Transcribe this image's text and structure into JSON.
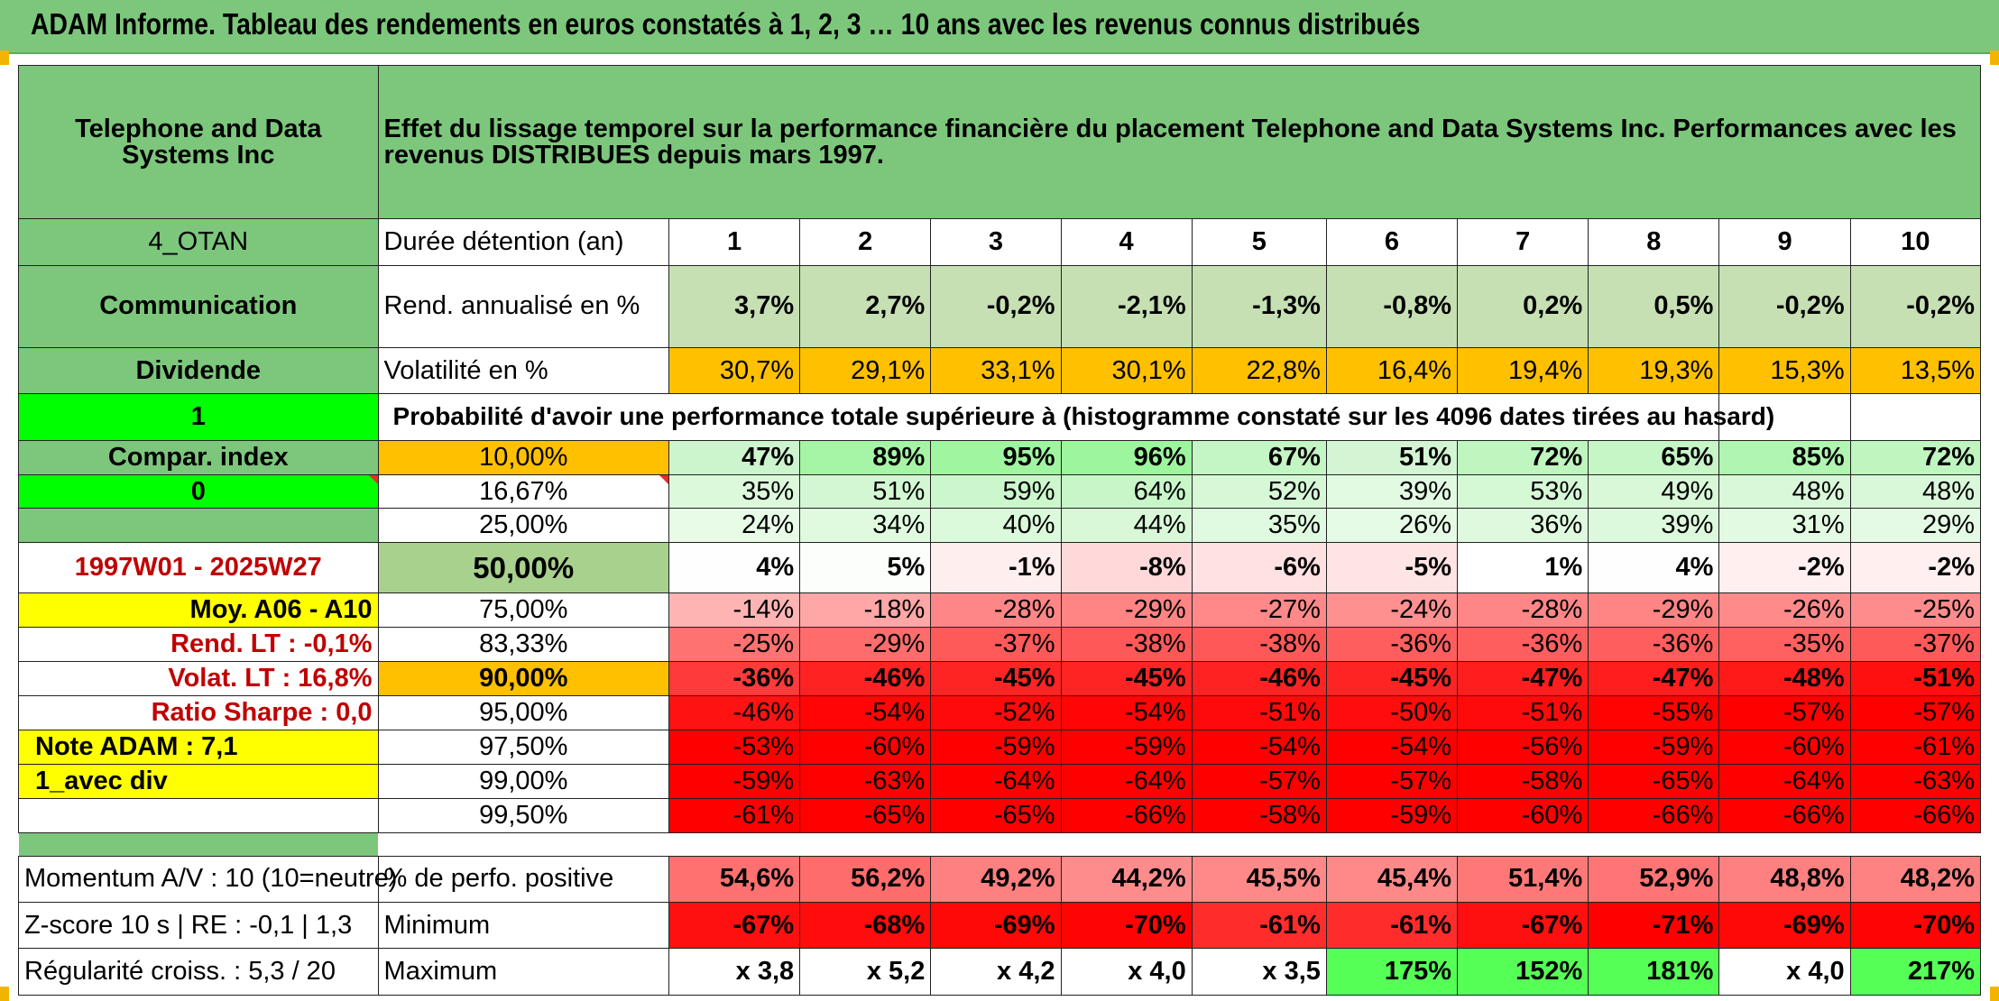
{
  "banner": "ADAM Informe. Tableau des rendements en euros constatés à 1, 2, 3 … 10 ans avec les revenus connus distribués",
  "header": {
    "company": "Telephone and Data Systems Inc",
    "description": "Effet du lissage temporel sur la performance financière du placement Telephone and Data Systems Inc. Performances avec les revenus DISTRIBUES depuis mars 1997."
  },
  "left": {
    "code": "4_OTAN",
    "sector": "Communication",
    "dividend_label": "Dividende",
    "flag1": "1",
    "compar_index": "Compar. index",
    "flag0": "0",
    "period": "1997W01 - 2025W27",
    "moy": "Moy. A06 - A10",
    "rend_lt": "Rend. LT :   -0,1%",
    "volat_lt": "Volat. LT :   16,8%",
    "sharpe": "Ratio Sharpe :    0,0",
    "note": "Note ADAM : 7,1",
    "avec_div": "1_avec div"
  },
  "rows": {
    "duree_label": "Durée détention (an)",
    "years": [
      "1",
      "2",
      "3",
      "4",
      "5",
      "6",
      "7",
      "8",
      "9",
      "10"
    ],
    "rend_label": "Rend. annualisé en %",
    "rend": [
      "3,7%",
      "2,7%",
      "-0,2%",
      "-2,1%",
      "-1,3%",
      "-0,8%",
      "0,2%",
      "0,5%",
      "-0,2%",
      "-0,2%"
    ],
    "vol_label": "Volatilité en %",
    "vol": [
      "30,7%",
      "29,1%",
      "33,1%",
      "30,1%",
      "22,8%",
      "16,4%",
      "19,4%",
      "19,3%",
      "15,3%",
      "13,5%"
    ],
    "proba_label": "Probabilité d'avoir une performance totale supérieure à (histogramme constaté sur les 4096 dates tirées au hasard)"
  },
  "quantiles": [
    {
      "label": "10,00%",
      "values": [
        "47%",
        "89%",
        "95%",
        "96%",
        "67%",
        "51%",
        "72%",
        "65%",
        "85%",
        "72%"
      ]
    },
    {
      "label": "16,67%",
      "values": [
        "35%",
        "51%",
        "59%",
        "64%",
        "52%",
        "39%",
        "53%",
        "49%",
        "48%",
        "48%"
      ]
    },
    {
      "label": "25,00%",
      "values": [
        "24%",
        "34%",
        "40%",
        "44%",
        "35%",
        "26%",
        "36%",
        "39%",
        "31%",
        "29%"
      ]
    },
    {
      "label": "50,00%",
      "values": [
        "4%",
        "5%",
        "-1%",
        "-8%",
        "-6%",
        "-5%",
        "1%",
        "4%",
        "-2%",
        "-2%"
      ]
    },
    {
      "label": "75,00%",
      "values": [
        "-14%",
        "-18%",
        "-28%",
        "-29%",
        "-27%",
        "-24%",
        "-28%",
        "-29%",
        "-26%",
        "-25%"
      ]
    },
    {
      "label": "83,33%",
      "values": [
        "-25%",
        "-29%",
        "-37%",
        "-38%",
        "-38%",
        "-36%",
        "-36%",
        "-36%",
        "-35%",
        "-37%"
      ]
    },
    {
      "label": "90,00%",
      "values": [
        "-36%",
        "-46%",
        "-45%",
        "-45%",
        "-46%",
        "-45%",
        "-47%",
        "-47%",
        "-48%",
        "-51%"
      ]
    },
    {
      "label": "95,00%",
      "values": [
        "-46%",
        "-54%",
        "-52%",
        "-54%",
        "-51%",
        "-50%",
        "-51%",
        "-55%",
        "-57%",
        "-57%"
      ]
    },
    {
      "label": "97,50%",
      "values": [
        "-53%",
        "-60%",
        "-59%",
        "-59%",
        "-54%",
        "-54%",
        "-56%",
        "-59%",
        "-60%",
        "-61%"
      ]
    },
    {
      "label": "99,00%",
      "values": [
        "-59%",
        "-63%",
        "-64%",
        "-64%",
        "-57%",
        "-57%",
        "-58%",
        "-65%",
        "-64%",
        "-63%"
      ]
    },
    {
      "label": "99,50%",
      "values": [
        "-61%",
        "-65%",
        "-65%",
        "-66%",
        "-58%",
        "-59%",
        "-60%",
        "-66%",
        "-66%",
        "-66%"
      ]
    }
  ],
  "bottom": {
    "momentum": "Momentum A/V : 10 (10=neutre)",
    "zscore": "Z-score 10 s | RE : -0,1 | 1,3",
    "regularite": "Régularité croiss. : 5,3 / 20",
    "pos_label": "% de perfo. positive",
    "pos": [
      "54,6%",
      "56,2%",
      "49,2%",
      "44,2%",
      "45,5%",
      "45,4%",
      "51,4%",
      "52,9%",
      "48,8%",
      "48,2%"
    ],
    "min_label": "Minimum",
    "min": [
      "-67%",
      "-68%",
      "-69%",
      "-70%",
      "-61%",
      "-61%",
      "-67%",
      "-71%",
      "-69%",
      "-70%"
    ],
    "max_label": "Maximum",
    "max": [
      "x 3,8",
      "x 5,2",
      "x 4,2",
      "x 4,0",
      "x 3,5",
      "175%",
      "152%",
      "181%",
      "x 4,0",
      "217%"
    ]
  },
  "colors": {
    "header_green": "#7cc77c",
    "bright_green": "#00ff00",
    "yellow": "#ffff00",
    "orange": "#ffc000",
    "red_text": "#c00000"
  },
  "cell_colors": {
    "rend": [
      "#c6e0b4",
      "#c6e0b4",
      "#c6e0b4",
      "#c6e0b4",
      "#c6e0b4",
      "#c6e0b4",
      "#c6e0b4",
      "#c6e0b4",
      "#c6e0b4",
      "#c6e0b4"
    ],
    "q": [
      [
        "#cdf5cd",
        "#a6f5a6",
        "#a0f5a0",
        "#9df59d",
        "#c4f5c4",
        "#d3f5d3",
        "#bff5bf",
        "#c6f5c6",
        "#b0f5b0",
        "#bff5bf"
      ],
      [
        "#dcf9dc",
        "#d3f7d3",
        "#ccf6cc",
        "#c8f6c8",
        "#d6f8d6",
        "#e2fae2",
        "#d5f8d5",
        "#d8f8d8",
        "#d9f8d9",
        "#d9f8d9"
      ],
      [
        "#e7fbe7",
        "#e0fae0",
        "#dbf9db",
        "#d8f8d8",
        "#dffae0",
        "#e6fbe6",
        "#dff9df",
        "#ddf9dd",
        "#e2fae2",
        "#e4fae4"
      ],
      [
        "#fdfefd",
        "#fcfefc",
        "#ffeeee",
        "#ffd9d9",
        "#ffe1e1",
        "#ffe4e4",
        "#fefffe",
        "#fdfefd",
        "#ffefef",
        "#ffefef"
      ],
      [
        "#ffb4b4",
        "#ffa6a6",
        "#ff8686",
        "#ff8484",
        "#ff8989",
        "#ff9090",
        "#ff8686",
        "#ff8484",
        "#ff8a8a",
        "#ff8c8c"
      ],
      [
        "#ff7272",
        "#ff6c6c",
        "#ff5a5a",
        "#ff5858",
        "#ff5858",
        "#ff5e5e",
        "#ff5e5e",
        "#ff5e5e",
        "#ff6060",
        "#ff5a5a"
      ],
      [
        "#ff3a3a",
        "#ff2222",
        "#ff2424",
        "#ff2424",
        "#ff2222",
        "#ff2424",
        "#ff1e1e",
        "#ff1e1e",
        "#ff1a1a",
        "#ff1010"
      ],
      [
        "#ff1212",
        "#ff0505",
        "#ff0a0a",
        "#ff0505",
        "#ff0a0a",
        "#ff0c0c",
        "#ff0a0a",
        "#ff0303",
        "#ff0000",
        "#ff0000"
      ],
      [
        "#ff0000",
        "#ff0000",
        "#ff0000",
        "#ff0000",
        "#ff0000",
        "#ff0000",
        "#ff0000",
        "#ff0000",
        "#ff0000",
        "#ff0000"
      ],
      [
        "#ff0000",
        "#ff0000",
        "#ff0000",
        "#ff0000",
        "#ff0000",
        "#ff0000",
        "#ff0000",
        "#ff0000",
        "#ff0000",
        "#ff0000"
      ],
      [
        "#ff0000",
        "#ff0000",
        "#ff0000",
        "#ff0000",
        "#ff0000",
        "#ff0000",
        "#ff0000",
        "#ff0000",
        "#ff0000",
        "#ff0000"
      ]
    ],
    "pos": [
      "#ff7070",
      "#ff6c6c",
      "#ff8080",
      "#ff8c8c",
      "#ff8888",
      "#ff8888",
      "#ff7878",
      "#ff7474",
      "#ff8080",
      "#ff8282"
    ],
    "min": [
      "#ff1010",
      "#ff0c0c",
      "#ff0808",
      "#ff0404",
      "#ff2c2c",
      "#ff2c2c",
      "#ff1010",
      "#ff0000",
      "#ff0808",
      "#ff0404"
    ],
    "max": [
      "#ffffff",
      "#ffffff",
      "#ffffff",
      "#ffffff",
      "#ffffff",
      "#55ff55",
      "#55ff55",
      "#55ff55",
      "#ffffff",
      "#55ff55"
    ]
  }
}
